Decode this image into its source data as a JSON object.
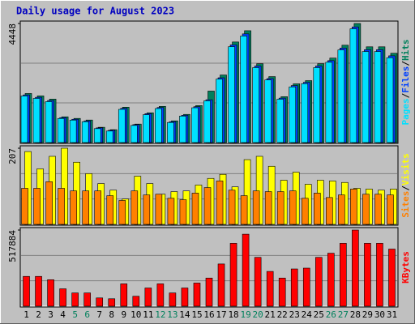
{
  "chart_data": {
    "type": "bar",
    "title": "Daily usage for August 2023",
    "categories": [
      "1",
      "2",
      "3",
      "4",
      "5",
      "6",
      "7",
      "8",
      "9",
      "10",
      "11",
      "12",
      "13",
      "14",
      "15",
      "16",
      "17",
      "18",
      "19",
      "20",
      "21",
      "22",
      "23",
      "24",
      "25",
      "26",
      "27",
      "28",
      "29",
      "30",
      "31"
    ],
    "category_colors": [
      "#000000",
      "#000000",
      "#000000",
      "#000000",
      "#00805c",
      "#00805c",
      "#000000",
      "#000000",
      "#000000",
      "#000000",
      "#000000",
      "#00805c",
      "#00805c",
      "#000000",
      "#000000",
      "#000000",
      "#000000",
      "#000000",
      "#00805c",
      "#00805c",
      "#000000",
      "#000000",
      "#000000",
      "#000000",
      "#000000",
      "#00805c",
      "#00805c",
      "#000000",
      "#000000",
      "#000000",
      "#000000"
    ],
    "legend_separator": "/",
    "panels": [
      {
        "ylim": [
          0,
          4448
        ],
        "yticks": [
          4448
        ],
        "series": [
          {
            "name": "Pages",
            "color": "#00e0ff",
            "values": [
              1740,
              1650,
              1530,
              900,
              840,
              780,
              520,
              430,
              1240,
              640,
              1040,
              1270,
              750,
              990,
              1300,
              1560,
              2370,
              3580,
              3980,
              2800,
              2340,
              1620,
              2080,
              2200,
              2800,
              3000,
              3460,
              4250,
              3400,
              3400,
              3170
            ]
          },
          {
            "name": "Files",
            "color": "#0040ff",
            "values": [
              1780,
              1690,
              1570,
              930,
              870,
              810,
              550,
              460,
              1280,
              670,
              1080,
              1310,
              780,
              1020,
              1340,
              1600,
              2420,
              3650,
              4060,
              2860,
              2390,
              1660,
              2130,
              2250,
              2860,
              3060,
              3530,
              4320,
              3470,
              3470,
              3240
            ]
          },
          {
            "name": "Hits",
            "color": "#00805c",
            "values": [
              1833,
              1743,
              1623,
              962,
              902,
              842,
              571,
              481,
              1322,
              691,
              1112,
              1352,
              811,
              1052,
              1382,
              1923,
              2524,
              3757,
              4178,
              2945,
              2464,
              1713,
              2194,
              2314,
              2945,
              3156,
              3637,
              4448,
              3577,
              3577,
              3336
            ]
          }
        ]
      },
      {
        "ylim": [
          0,
          207
        ],
        "yticks": [
          207
        ],
        "series": [
          {
            "name": "Sites",
            "color": "#ff8000",
            "values": [
              98,
              98,
              116,
              98,
              91,
              91,
              91,
              78,
              65,
              91,
              80,
              82,
              71,
              67,
              85,
              100,
              118,
              93,
              78,
              91,
              89,
              89,
              91,
              71,
              85,
              73,
              80,
              96,
              82,
              82,
              80
            ]
          },
          {
            "name": "Visits",
            "color": "#ffff00",
            "values": [
              198,
              151,
              185,
              207,
              169,
              138,
              111,
              93,
              69,
              131,
              111,
              82,
              89,
              91,
              107,
              125,
              136,
              102,
              176,
              185,
              158,
              120,
              142,
              109,
              120,
              118,
              114,
              98,
              96,
              93,
              96
            ]
          }
        ]
      },
      {
        "ylim": [
          0,
          517884
        ],
        "yticks": [
          517884
        ],
        "series": [
          {
            "name": "KBytes",
            "color": "#ff0000",
            "values": [
              202650,
              202650,
              180133,
              118214,
              90067,
              90067,
              56292,
              50662,
              151988,
              67550,
              123843,
              151988,
              90067,
              123843,
              157617,
              191393,
              287089,
              427818,
              489739,
              332122,
              236425,
              191393,
              253313,
              258942,
              332122,
              360267,
              427818,
              517884,
              427818,
              427818,
              388413
            ]
          }
        ]
      }
    ]
  }
}
